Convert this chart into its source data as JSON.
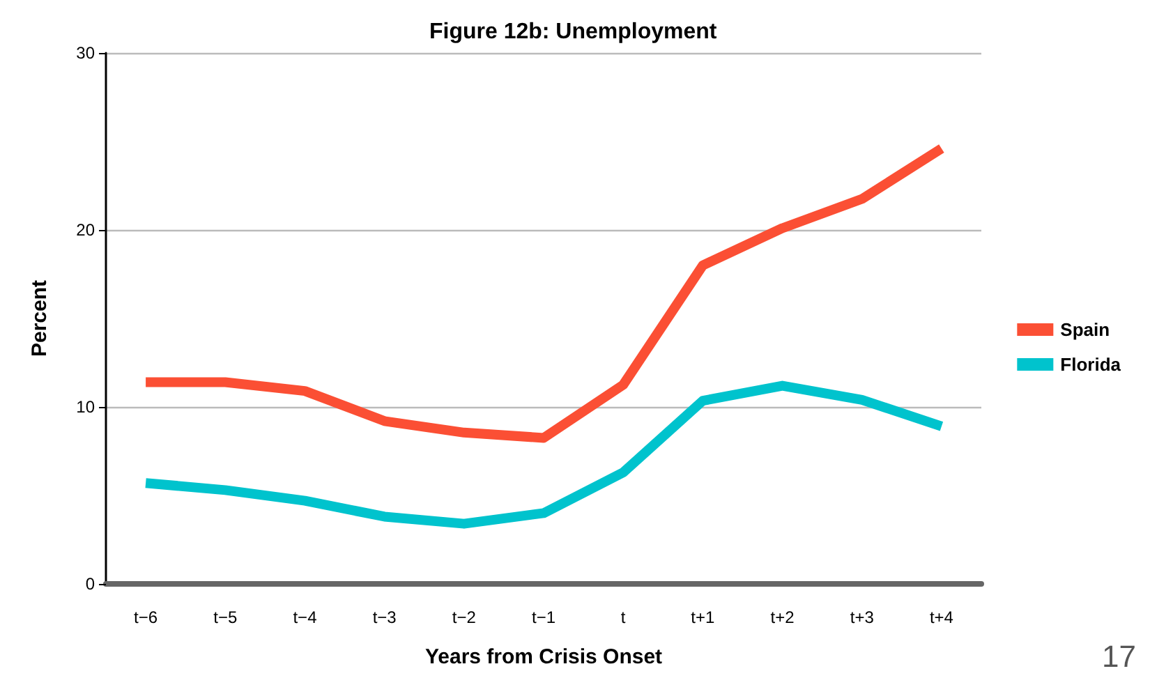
{
  "chart_data": {
    "type": "line",
    "title": "Figure 12b: Unemployment",
    "xlabel": "Years from Crisis Onset",
    "ylabel": "Percent",
    "categories": [
      "t−6",
      "t−5",
      "t−4",
      "t−3",
      "t−2",
      "t−1",
      "t",
      "t+1",
      "t+2",
      "t+3",
      "t+4"
    ],
    "series": [
      {
        "name": "Spain",
        "color": "#fb4f34",
        "values": [
          11.4,
          11.4,
          10.9,
          9.2,
          8.55,
          8.25,
          11.25,
          18.0,
          20.1,
          21.75,
          24.6
        ]
      },
      {
        "name": "Florida",
        "color": "#00c3cd",
        "values": [
          5.7,
          5.3,
          4.7,
          3.8,
          3.4,
          4.0,
          6.3,
          10.35,
          11.2,
          10.4,
          8.9
        ]
      }
    ],
    "ylim": [
      0,
      30
    ],
    "yticks": [
      0,
      10,
      20,
      30
    ],
    "grid": "y",
    "legend": "right",
    "marker": "none",
    "line_style": "solid",
    "annotations": [
      "17"
    ]
  }
}
